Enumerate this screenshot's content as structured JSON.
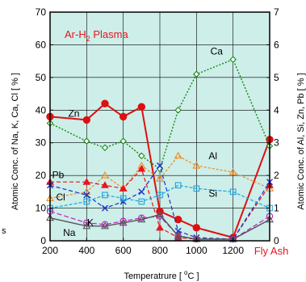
{
  "chart_data": {
    "type": "line",
    "title_parts": [
      "Ar-H",
      "2",
      " Plasma"
    ],
    "title_color": "#e8141c",
    "xlabel_parts": [
      "Temperatrure  [ ",
      "o",
      "C ]"
    ],
    "ylabel_left": "Atomic Conc. of Na, K, Ca, Cl  [ % ]",
    "ylabel_right": "Atomic Conc. of Al, Si, Zn, Pb  [ % ]",
    "x_ticks": [
      200,
      400,
      600,
      800,
      1000,
      1200
    ],
    "x_tick_labels": [
      "200",
      "400",
      "600",
      "800",
      "1000",
      "1200"
    ],
    "x_extra_label": "Fly Ash",
    "x_extra_label_color": "#e8141c",
    "xlim": [
      200,
      1400
    ],
    "ylim_left": [
      0,
      70
    ],
    "ylim_right": [
      0,
      7
    ],
    "y_ticks_left": [
      0,
      10,
      20,
      30,
      40,
      50,
      60,
      70
    ],
    "y_tick_labels_left": [
      "0",
      "10",
      "20",
      "30",
      "40",
      "50",
      "60",
      "70"
    ],
    "y_ticks_right": [
      0,
      1,
      2,
      3,
      4,
      5,
      6,
      7
    ],
    "y_tick_labels_right": [
      "0",
      "1",
      "2",
      "3",
      "4",
      "5",
      "6",
      "7"
    ],
    "left_partial_label": "s",
    "plot_background": "#cdeee9",
    "grid": true,
    "series": [
      {
        "name": "Zn",
        "axis": "right",
        "color": "#dd1010",
        "marker": "circle-filled",
        "dash": "solid",
        "width": 2,
        "x": [
          200,
          400,
          500,
          600,
          700,
          800,
          900,
          1000,
          1200,
          1400
        ],
        "y": [
          3.8,
          3.7,
          4.2,
          3.8,
          4.1,
          0.9,
          0.65,
          0.4,
          0.1,
          3.1
        ]
      },
      {
        "name": "Ca",
        "axis": "left",
        "color": "#138a13",
        "marker": "diamond-open",
        "dash": "2,2",
        "width": 1.4,
        "x": [
          200,
          400,
          500,
          600,
          700,
          800,
          900,
          1000,
          1200,
          1400
        ],
        "y": [
          36,
          30.5,
          28.5,
          30.5,
          26,
          22,
          40,
          51,
          55.5,
          29
        ]
      },
      {
        "name": "Al",
        "axis": "right",
        "color": "#f08a1c",
        "marker": "triangle-open",
        "dash": "3,2",
        "width": 1.2,
        "x": [
          200,
          400,
          500,
          600,
          700,
          800,
          900,
          1000,
          1200,
          1400
        ],
        "y": [
          1.3,
          1.5,
          2.0,
          1.6,
          2.3,
          1.9,
          2.6,
          2.3,
          2.1,
          1.6
        ]
      },
      {
        "name": "Pb",
        "axis": "right",
        "color": "#e8141c",
        "marker": "triangle-filled",
        "dash": "5,3",
        "width": 1.2,
        "x": [
          200,
          400,
          500,
          600,
          700,
          800,
          900,
          1000,
          1200,
          1400
        ],
        "y": [
          1.8,
          1.8,
          1.7,
          1.6,
          2.2,
          0.4,
          0.1,
          0.05,
          0.05,
          1.7
        ]
      },
      {
        "name": "Cl",
        "axis": "left",
        "color": "#1a2fcc",
        "marker": "x",
        "dash": "5,3",
        "width": 1.2,
        "x": [
          200,
          400,
          500,
          600,
          700,
          800,
          900,
          1000,
          1200,
          1400
        ],
        "y": [
          17,
          14,
          10,
          12,
          15,
          23,
          3,
          1,
          0.5,
          18
        ]
      },
      {
        "name": "Si",
        "axis": "right",
        "color": "#1aa6e0",
        "marker": "square-open",
        "dash": "4,2",
        "width": 1.2,
        "x": [
          200,
          400,
          500,
          600,
          700,
          800,
          900,
          1000,
          1200,
          1400
        ],
        "y": [
          1.0,
          1.2,
          1.4,
          1.3,
          1.2,
          1.4,
          1.7,
          1.6,
          1.5,
          1.0
        ]
      },
      {
        "name": "K",
        "axis": "left",
        "color": "#c020c0",
        "marker": "circle-open",
        "dash": "6,3",
        "width": 1.2,
        "x": [
          200,
          400,
          500,
          600,
          700,
          800,
          900,
          1000,
          1200,
          1400
        ],
        "y": [
          9,
          5.5,
          5,
          6,
          7,
          7.5,
          1.5,
          0.5,
          0.5,
          7.5
        ]
      },
      {
        "name": "Na",
        "axis": "left",
        "color": "#555555",
        "marker": "triangle-open",
        "dash": "solid",
        "width": 1.4,
        "x": [
          200,
          400,
          500,
          600,
          700,
          800,
          900,
          1000,
          1200,
          1400
        ],
        "y": [
          7,
          4.5,
          4.5,
          5.5,
          6.5,
          8,
          1.5,
          0.5,
          0.5,
          6.5
        ]
      }
    ],
    "annotations": [
      {
        "text": "Ca",
        "color": "#000000",
        "x": 1110,
        "y": 57,
        "axis": "left"
      },
      {
        "text": "Zn",
        "color": "#000000",
        "x": 330,
        "y": 38,
        "axis": "left"
      },
      {
        "text": "Al",
        "color": "#000000",
        "x": 1090,
        "y": 25,
        "axis": "left"
      },
      {
        "text": "Pb",
        "color": "#000000",
        "x": 244,
        "y": 19.2,
        "axis": "left"
      },
      {
        "text": "Cl",
        "color": "#000000",
        "x": 258,
        "y": 12.4,
        "axis": "left"
      },
      {
        "text": "Si",
        "color": "#000000",
        "x": 1090,
        "y": 13.5,
        "axis": "left"
      },
      {
        "text": "K",
        "color": "#000000",
        "x": 420,
        "y": 4.6,
        "axis": "left"
      },
      {
        "text": "Na",
        "color": "#000000",
        "x": 305,
        "y": 1.5,
        "axis": "left"
      }
    ]
  }
}
